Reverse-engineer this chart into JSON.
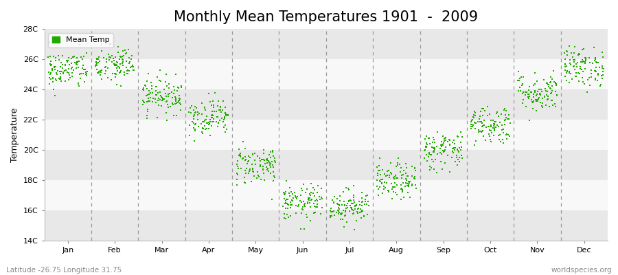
{
  "title": "Monthly Mean Temperatures 1901  -  2009",
  "ylabel": "Temperature",
  "bottom_left": "Latitude -26.75 Longitude 31.75",
  "bottom_right": "worldspecies.org",
  "legend_label": "Mean Temp",
  "ylim": [
    14,
    28
  ],
  "yticks": [
    14,
    16,
    18,
    20,
    22,
    24,
    26,
    28
  ],
  "ytick_labels": [
    "14C",
    "16C",
    "18C",
    "20C",
    "22C",
    "24C",
    "26C",
    "28C"
  ],
  "months": [
    "Jan",
    "Feb",
    "Mar",
    "Apr",
    "May",
    "Jun",
    "Jul",
    "Aug",
    "Sep",
    "Oct",
    "Nov",
    "Dec"
  ],
  "mean_temps": [
    25.3,
    25.6,
    23.6,
    22.2,
    19.0,
    16.5,
    16.3,
    17.9,
    20.0,
    21.7,
    23.8,
    25.5
  ],
  "std_temps": [
    0.65,
    0.65,
    0.6,
    0.6,
    0.65,
    0.6,
    0.55,
    0.6,
    0.65,
    0.65,
    0.65,
    0.65
  ],
  "n_years": 109,
  "dot_color": "#22aa00",
  "dot_size": 3,
  "bg_color": "#f0f0f0",
  "stripe_light": "#f8f8f8",
  "stripe_dark": "#e8e8e8",
  "title_fontsize": 15,
  "axis_label_fontsize": 9,
  "tick_fontsize": 8,
  "dashed_line_color": "#999999",
  "seed": 42
}
